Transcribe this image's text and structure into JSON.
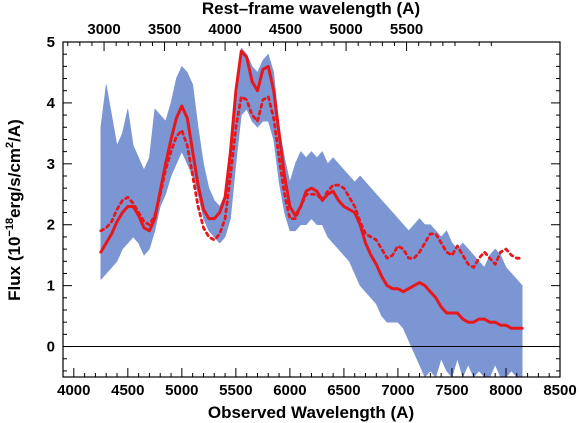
{
  "chart_data": {
    "type": "line",
    "title": "",
    "xlabel": "Observed Wavelength (A)",
    "x2label": "Rest–frame wavelength (A)",
    "ylabel_parts": [
      "Flux (10",
      "−18",
      "erg/s/cm",
      "2",
      "/A)"
    ],
    "xlim": [
      3900,
      8500
    ],
    "ylim": [
      -0.5,
      5
    ],
    "xticks": [
      4000,
      4500,
      5000,
      5500,
      6000,
      6500,
      7000,
      7500,
      8000,
      8500
    ],
    "yticks": [
      0,
      1,
      2,
      3,
      4,
      5
    ],
    "x2_ticks": [
      3000,
      3500,
      4000,
      4500,
      5000,
      5500
    ],
    "x2_tick_observed": [
      4280,
      4840,
      5400,
      5960,
      6520,
      7080
    ],
    "zero_line": 0,
    "series": [
      {
        "style": "band",
        "color": "#7b96d2",
        "x": [
          4250,
          4300,
          4350,
          4400,
          4450,
          4500,
          4550,
          4600,
          4650,
          4700,
          4750,
          4800,
          4850,
          4900,
          4950,
          5000,
          5050,
          5100,
          5150,
          5200,
          5250,
          5300,
          5350,
          5400,
          5450,
          5500,
          5550,
          5600,
          5650,
          5700,
          5750,
          5800,
          5850,
          5900,
          5950,
          6000,
          6050,
          6100,
          6150,
          6200,
          6250,
          6300,
          6350,
          6400,
          6450,
          6500,
          6550,
          6600,
          6650,
          6700,
          6750,
          6800,
          6850,
          6900,
          6950,
          7000,
          7050,
          7100,
          7150,
          7200,
          7250,
          7300,
          7350,
          7400,
          7450,
          7500,
          7550,
          7600,
          7650,
          7700,
          7750,
          7800,
          7850,
          7900,
          7950,
          8000,
          8050,
          8100,
          8150
        ],
        "upper": [
          3.6,
          4.3,
          3.8,
          3.3,
          3.5,
          3.9,
          3.3,
          3.1,
          2.9,
          3.1,
          3.9,
          3.8,
          3.7,
          4.0,
          4.4,
          4.6,
          4.5,
          4.3,
          3.6,
          3.0,
          2.6,
          2.4,
          2.3,
          2.5,
          3.2,
          4.2,
          4.9,
          4.8,
          4.6,
          4.5,
          4.7,
          4.8,
          4.5,
          3.6,
          3.1,
          2.7,
          3.0,
          3.2,
          3.1,
          3.2,
          3.1,
          3.2,
          3.0,
          3.1,
          3.0,
          2.9,
          2.8,
          2.7,
          2.8,
          2.7,
          2.6,
          2.5,
          2.4,
          2.3,
          2.2,
          2.1,
          2.0,
          1.9,
          2.0,
          2.1,
          2.0,
          2.0,
          1.9,
          1.8,
          1.9,
          1.7,
          1.6,
          1.7,
          1.6,
          1.5,
          1.4,
          1.3,
          1.5,
          1.6,
          1.5,
          1.3,
          1.2,
          1.1,
          1.0
        ],
        "lower": [
          1.1,
          1.2,
          1.3,
          1.4,
          1.6,
          1.7,
          1.8,
          1.7,
          1.5,
          1.6,
          1.9,
          2.3,
          2.5,
          2.8,
          3.0,
          3.2,
          3.0,
          2.8,
          2.5,
          2.1,
          1.9,
          1.8,
          1.7,
          1.8,
          2.1,
          3.0,
          3.8,
          3.9,
          3.7,
          3.6,
          3.7,
          3.7,
          3.4,
          2.7,
          2.2,
          1.9,
          1.9,
          2.0,
          2.0,
          2.1,
          2.0,
          2.0,
          1.8,
          1.7,
          1.6,
          1.5,
          1.4,
          1.2,
          1.0,
          0.9,
          0.8,
          0.7,
          0.5,
          0.4,
          0.4,
          0.4,
          0.3,
          0.1,
          -0.1,
          -0.3,
          -0.5,
          -0.4,
          -0.5,
          -0.2,
          -0.4,
          -0.5,
          -0.2,
          -0.5,
          -0.3,
          -0.5,
          -0.4,
          -0.5,
          -0.5,
          -0.3,
          -0.5,
          -0.5,
          -0.4,
          -0.5,
          -0.5
        ]
      },
      {
        "style": "solid",
        "color": "#e8171c",
        "x": [
          4250,
          4300,
          4350,
          4400,
          4450,
          4500,
          4550,
          4600,
          4650,
          4700,
          4750,
          4800,
          4850,
          4900,
          4950,
          5000,
          5050,
          5100,
          5150,
          5200,
          5250,
          5300,
          5350,
          5400,
          5450,
          5500,
          5550,
          5600,
          5650,
          5700,
          5750,
          5800,
          5850,
          5900,
          5950,
          6000,
          6050,
          6100,
          6150,
          6200,
          6250,
          6300,
          6350,
          6400,
          6450,
          6500,
          6550,
          6600,
          6650,
          6700,
          6750,
          6800,
          6850,
          6900,
          6950,
          7000,
          7050,
          7100,
          7150,
          7200,
          7250,
          7300,
          7350,
          7400,
          7450,
          7500,
          7550,
          7600,
          7650,
          7700,
          7750,
          7800,
          7850,
          7900,
          7950,
          8000,
          8050,
          8100,
          8150
        ],
        "y": [
          1.55,
          1.7,
          1.85,
          2.05,
          2.2,
          2.3,
          2.3,
          2.15,
          1.95,
          1.9,
          2.1,
          2.55,
          3.0,
          3.4,
          3.75,
          3.95,
          3.75,
          3.2,
          2.65,
          2.25,
          2.1,
          2.1,
          2.2,
          2.45,
          3.2,
          4.2,
          4.85,
          4.75,
          4.35,
          4.2,
          4.55,
          4.6,
          4.2,
          3.5,
          2.8,
          2.3,
          2.15,
          2.3,
          2.55,
          2.6,
          2.55,
          2.4,
          2.5,
          2.55,
          2.4,
          2.3,
          2.25,
          2.2,
          2.0,
          1.7,
          1.5,
          1.35,
          1.15,
          1.0,
          0.95,
          0.95,
          0.9,
          0.95,
          1.0,
          1.05,
          1.0,
          0.9,
          0.8,
          0.65,
          0.55,
          0.55,
          0.55,
          0.45,
          0.4,
          0.4,
          0.45,
          0.45,
          0.4,
          0.4,
          0.35,
          0.35,
          0.3,
          0.3,
          0.3
        ]
      },
      {
        "style": "dotted",
        "color": "#e8171c",
        "x": [
          4250,
          4300,
          4350,
          4400,
          4450,
          4500,
          4550,
          4600,
          4650,
          4700,
          4750,
          4800,
          4850,
          4900,
          4950,
          5000,
          5050,
          5100,
          5150,
          5200,
          5250,
          5300,
          5350,
          5400,
          5450,
          5500,
          5550,
          5600,
          5650,
          5700,
          5750,
          5800,
          5850,
          5900,
          5950,
          6000,
          6050,
          6100,
          6150,
          6200,
          6250,
          6300,
          6350,
          6400,
          6450,
          6500,
          6550,
          6600,
          6650,
          6700,
          6750,
          6800,
          6850,
          6900,
          6950,
          7000,
          7050,
          7100,
          7150,
          7200,
          7250,
          7300,
          7350,
          7400,
          7450,
          7500,
          7550,
          7600,
          7650,
          7700,
          7750,
          7800,
          7850,
          7900,
          7950,
          8000,
          8050,
          8100,
          8150
        ],
        "y": [
          1.9,
          1.95,
          2.05,
          2.25,
          2.4,
          2.45,
          2.35,
          2.2,
          2.05,
          2.0,
          2.15,
          2.5,
          2.9,
          3.2,
          3.45,
          3.55,
          3.3,
          2.8,
          2.3,
          1.95,
          1.8,
          1.75,
          1.85,
          2.1,
          2.8,
          3.6,
          4.1,
          4.05,
          3.8,
          3.7,
          4.05,
          4.1,
          3.75,
          3.1,
          2.5,
          2.1,
          2.1,
          2.3,
          2.5,
          2.5,
          2.5,
          2.4,
          2.55,
          2.65,
          2.65,
          2.6,
          2.45,
          2.3,
          2.05,
          1.85,
          1.8,
          1.75,
          1.6,
          1.45,
          1.5,
          1.65,
          1.6,
          1.45,
          1.45,
          1.55,
          1.7,
          1.85,
          1.85,
          1.7,
          1.55,
          1.5,
          1.65,
          1.5,
          1.35,
          1.3,
          1.45,
          1.55,
          1.45,
          1.35,
          1.55,
          1.6,
          1.5,
          1.45,
          1.45
        ]
      }
    ]
  }
}
